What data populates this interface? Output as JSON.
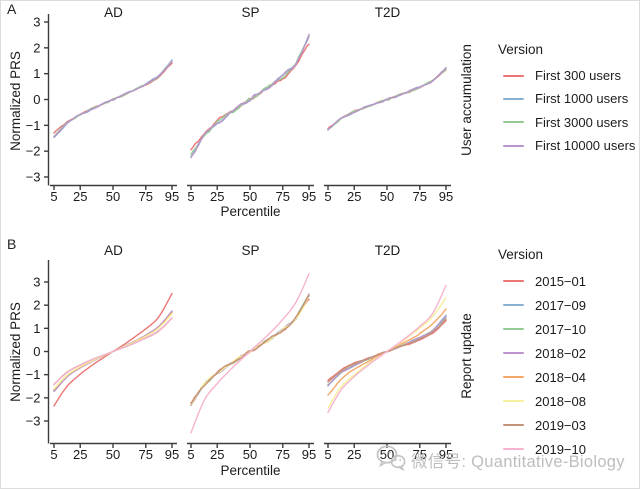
{
  "watermark": {
    "icon": "wechat-icon",
    "text": "微信号: Quantitative-Biology"
  },
  "chart_data": [
    {
      "panel_label": "A",
      "type": "line",
      "facets": [
        "AD",
        "SP",
        "T2D"
      ],
      "xlabel": "Percentile",
      "ylabel": "Normalized PRS",
      "right_axis_label": "User accumulation",
      "legend_title": "Version",
      "legend_position": "right",
      "grid": false,
      "x": [
        5,
        15,
        25,
        35,
        45,
        50,
        55,
        65,
        75,
        85,
        95
      ],
      "x_ticks": [
        5,
        25,
        50,
        75,
        95
      ],
      "y_ticks": [
        3,
        2,
        1,
        0,
        -1,
        -2,
        -3
      ],
      "xlim": [
        5,
        95
      ],
      "ylim": [
        -3,
        3
      ],
      "series": [
        {
          "name": "First 300 users",
          "color": "#ec7576",
          "values": {
            "AD": [
              -1.3,
              -0.88,
              -0.57,
              -0.33,
              -0.11,
              0,
              0.11,
              0.33,
              0.57,
              0.88,
              1.4
            ],
            "SP": [
              -2.0,
              -1.3,
              -0.84,
              -0.48,
              -0.16,
              0,
              0.16,
              0.48,
              0.84,
              1.3,
              2.2
            ],
            "T2D": [
              -1.12,
              -0.73,
              -0.47,
              -0.27,
              -0.09,
              0,
              0.09,
              0.27,
              0.47,
              0.73,
              1.18
            ]
          }
        },
        {
          "name": "First 1000 users",
          "color": "#8ab0d2",
          "values": {
            "AD": [
              -1.48,
              -0.93,
              -0.61,
              -0.35,
              -0.11,
              0,
              0.11,
              0.35,
              0.61,
              0.93,
              1.55
            ],
            "SP": [
              -2.2,
              -1.43,
              -0.93,
              -0.53,
              -0.17,
              0,
              0.17,
              0.53,
              0.93,
              1.43,
              2.5
            ],
            "T2D": [
              -1.18,
              -0.75,
              -0.49,
              -0.28,
              -0.09,
              0,
              0.09,
              0.28,
              0.49,
              0.75,
              1.2
            ]
          }
        },
        {
          "name": "First 3000 users",
          "color": "#93cb93",
          "values": {
            "AD": [
              -1.44,
              -0.91,
              -0.59,
              -0.34,
              -0.11,
              0,
              0.11,
              0.34,
              0.59,
              0.91,
              1.48
            ],
            "SP": [
              -2.18,
              -1.39,
              -0.9,
              -0.52,
              -0.17,
              0,
              0.17,
              0.52,
              0.9,
              1.39,
              2.45
            ],
            "T2D": [
              -1.17,
              -0.74,
              -0.48,
              -0.27,
              -0.09,
              0,
              0.09,
              0.27,
              0.48,
              0.74,
              1.2
            ]
          }
        },
        {
          "name": "First 10000 users",
          "color": "#bb95cb",
          "values": {
            "AD": [
              -1.45,
              -0.91,
              -0.59,
              -0.34,
              -0.11,
              0,
              0.11,
              0.34,
              0.59,
              0.91,
              1.5
            ],
            "SP": [
              -2.22,
              -1.41,
              -0.92,
              -0.52,
              -0.17,
              0,
              0.17,
              0.52,
              0.92,
              1.41,
              2.48
            ],
            "T2D": [
              -1.17,
              -0.74,
              -0.48,
              -0.28,
              -0.09,
              0,
              0.09,
              0.28,
              0.48,
              0.74,
              1.21
            ]
          }
        }
      ]
    },
    {
      "panel_label": "B",
      "type": "line",
      "facets": [
        "AD",
        "SP",
        "T2D"
      ],
      "xlabel": "Percentile",
      "ylabel": "Normalized PRS",
      "right_axis_label": "Report update",
      "legend_title": "Version",
      "legend_position": "right",
      "grid": false,
      "x": [
        5,
        15,
        25,
        35,
        45,
        50,
        55,
        65,
        75,
        85,
        95
      ],
      "x_ticks": [
        5,
        25,
        50,
        75,
        95
      ],
      "y_ticks": [
        3,
        2,
        1,
        0,
        -1,
        -2,
        -3
      ],
      "xlim": [
        5,
        95
      ],
      "ylim": [
        -3.6,
        3.6
      ],
      "series": [
        {
          "name": "2015-01",
          "color": "#ec7576",
          "values": {
            "AD": [
              -2.35,
              -1.5,
              -0.98,
              -0.56,
              -0.18,
              0,
              0.18,
              0.56,
              0.98,
              1.5,
              2.5
            ],
            "SP": [
              -2.27,
              -1.43,
              -0.93,
              -0.53,
              -0.17,
              0,
              0.17,
              0.53,
              0.93,
              1.43,
              2.3
            ],
            "T2D": [
              -1.25,
              -0.79,
              -0.51,
              -0.29,
              -0.1,
              0,
              0.1,
              0.29,
              0.51,
              0.79,
              1.35
            ]
          }
        },
        {
          "name": "2017-09",
          "color": "#8ab0d2",
          "values": {
            "AD": [
              -1.69,
              -1.07,
              -0.69,
              -0.4,
              -0.13,
              0,
              0.13,
              0.4,
              0.69,
              1.07,
              1.72
            ],
            "SP": [
              -2.3,
              -1.45,
              -0.94,
              -0.54,
              -0.18,
              0,
              0.18,
              0.54,
              0.94,
              1.45,
              2.4
            ],
            "T2D": [
              -1.48,
              -0.93,
              -0.61,
              -0.35,
              -0.11,
              0,
              0.11,
              0.35,
              0.61,
              0.93,
              1.55
            ]
          }
        },
        {
          "name": "2017-10",
          "color": "#93cb93",
          "values": {
            "AD": [
              -1.65,
              -1.04,
              -0.67,
              -0.39,
              -0.13,
              0,
              0.13,
              0.39,
              0.67,
              1.04,
              1.68
            ],
            "SP": [
              -2.3,
              -1.45,
              -0.94,
              -0.54,
              -0.18,
              0,
              0.18,
              0.54,
              0.94,
              1.45,
              2.5
            ],
            "T2D": [
              -1.45,
              -0.91,
              -0.59,
              -0.34,
              -0.11,
              0,
              0.11,
              0.34,
              0.59,
              0.91,
              1.48
            ]
          }
        },
        {
          "name": "2018-02",
          "color": "#bb95cb",
          "values": {
            "AD": [
              -1.73,
              -1.09,
              -0.71,
              -0.4,
              -0.13,
              0,
              0.13,
              0.4,
              0.71,
              1.09,
              1.75
            ],
            "SP": [
              -2.29,
              -1.44,
              -0.94,
              -0.53,
              -0.17,
              0,
              0.17,
              0.53,
              0.94,
              1.44,
              2.45
            ],
            "T2D": [
              -1.46,
              -0.92,
              -0.6,
              -0.34,
              -0.11,
              0,
              0.11,
              0.34,
              0.6,
              0.92,
              1.5
            ]
          }
        },
        {
          "name": "2018-04",
          "color": "#f5a868",
          "values": {
            "AD": [
              -1.64,
              -1.03,
              -0.67,
              -0.38,
              -0.13,
              0,
              0.13,
              0.38,
              0.67,
              1.03,
              1.66
            ],
            "SP": [
              -2.27,
              -1.43,
              -0.93,
              -0.53,
              -0.17,
              0,
              0.17,
              0.53,
              0.93,
              1.43,
              2.42
            ],
            "T2D": [
              -1.89,
              -1.19,
              -0.78,
              -0.44,
              -0.14,
              0,
              0.14,
              0.44,
              0.78,
              1.19,
              1.85
            ]
          }
        },
        {
          "name": "2018-08",
          "color": "#f6ef9b",
          "values": {
            "AD": [
              -1.61,
              -1.02,
              -0.66,
              -0.38,
              -0.12,
              0,
              0.12,
              0.38,
              0.66,
              1.02,
              1.63
            ],
            "SP": [
              -2.26,
              -1.42,
              -0.92,
              -0.53,
              -0.17,
              0,
              0.17,
              0.53,
              0.92,
              1.42,
              2.4
            ],
            "T2D": [
              -2.43,
              -1.53,
              -1.0,
              -0.57,
              -0.19,
              0,
              0.19,
              0.57,
              1.0,
              1.53,
              2.3
            ]
          }
        },
        {
          "name": "2019-03",
          "color": "#c4937c",
          "values": {
            "AD": [
              -1.42,
              -0.89,
              -0.58,
              -0.33,
              -0.11,
              0,
              0.11,
              0.33,
              0.58,
              0.89,
              1.44
            ],
            "SP": [
              -2.28,
              -1.44,
              -0.93,
              -0.53,
              -0.17,
              0,
              0.17,
              0.53,
              0.93,
              1.44,
              2.44
            ],
            "T2D": [
              -1.32,
              -0.83,
              -0.54,
              -0.31,
              -0.1,
              0,
              0.1,
              0.31,
              0.54,
              0.83,
              1.4
            ]
          }
        },
        {
          "name": "2019-10",
          "color": "#f6b3d0",
          "smooth": true,
          "values": {
            "AD": [
              -1.43,
              -0.9,
              -0.59,
              -0.33,
              -0.11,
              0,
              0.11,
              0.33,
              0.59,
              0.9,
              1.45
            ],
            "SP": [
              -3.5,
              -2.12,
              -1.38,
              -0.79,
              -0.26,
              0,
              0.26,
              0.79,
              1.38,
              2.12,
              3.35
            ],
            "T2D": [
              -2.63,
              -1.66,
              -1.08,
              -0.62,
              -0.2,
              0,
              0.2,
              0.62,
              1.08,
              1.66,
              2.85
            ]
          }
        }
      ]
    }
  ]
}
